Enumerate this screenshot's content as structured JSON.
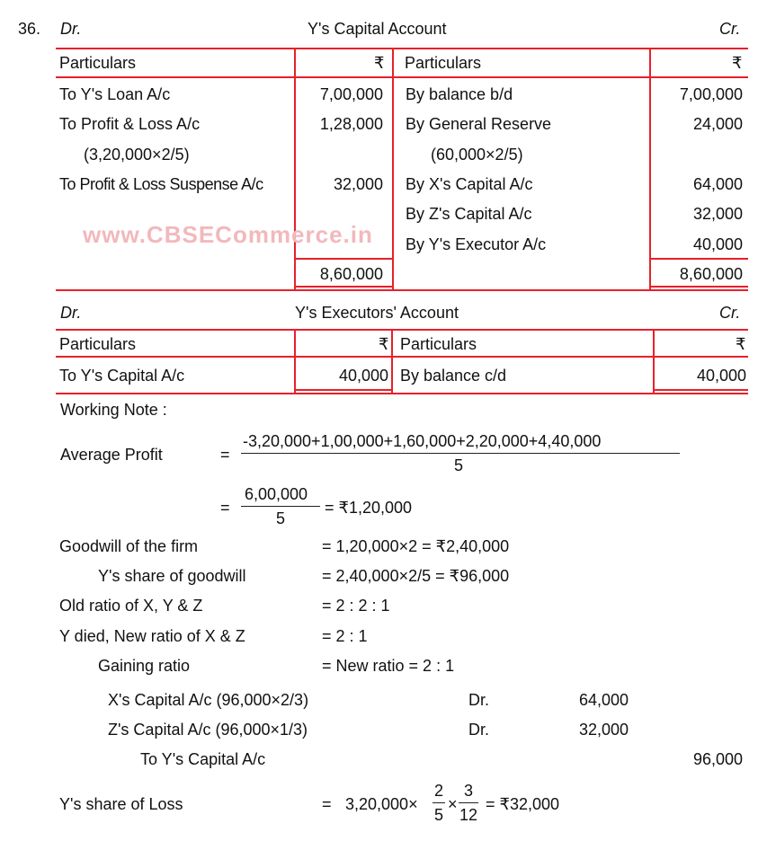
{
  "question_number": "36.",
  "capital_account": {
    "dr": "Dr.",
    "title": "Y's Capital Account",
    "cr": "Cr.",
    "headers": [
      "Particulars",
      "₹",
      "Particulars",
      "₹"
    ],
    "debit": [
      {
        "p": "To Y's Loan A/c",
        "a": "7,00,000"
      },
      {
        "p": "To Profit & Loss A/c",
        "a": "1,28,000"
      },
      {
        "p": "(3,20,000×2/5)",
        "a": ""
      },
      {
        "p": "To Profit & Loss Suspense A/c",
        "a": "32,000"
      }
    ],
    "credit": [
      {
        "p": "By balance b/d",
        "a": "7,00,000"
      },
      {
        "p": "By General Reserve",
        "a": "24,000"
      },
      {
        "p": "(60,000×2/5)",
        "a": ""
      },
      {
        "p": "By X's Capital A/c",
        "a": "64,000"
      },
      {
        "p": "By Z's Capital A/c",
        "a": "32,000"
      },
      {
        "p": "By Y's Executor A/c",
        "a": "40,000"
      }
    ],
    "total_dr": "8,60,000",
    "total_cr": "8,60,000"
  },
  "watermark": "www.CBSECommerce.in",
  "executors_account": {
    "dr": "Dr.",
    "title": "Y's Executors' Account",
    "cr": "Cr.",
    "headers": [
      "Particulars",
      "₹",
      "Particulars",
      "₹"
    ],
    "debit": {
      "p": "To Y's Capital A/c",
      "a": "40,000"
    },
    "credit": {
      "p": "By balance c/d",
      "a": "40,000"
    }
  },
  "working_note": {
    "heading": "Working Note :",
    "avg_label": "Average Profit",
    "eq": "=",
    "avg_num": "-3,20,000+1,00,000+1,60,000+2,20,000+4,40,000",
    "avg_den": "5",
    "avg2_num": "6,00,000",
    "avg2_den": "5",
    "avg2_res": "= ₹1,20,000",
    "lines": [
      {
        "label": "Goodwill of the firm",
        "value": "=  1,20,000×2 = ₹2,40,000"
      },
      {
        "label": "Y's share of goodwill",
        "value": "=  2,40,000×2/5 = ₹96,000"
      },
      {
        "label": "Old ratio of X, Y & Z",
        "value": "=  2 : 2 : 1"
      },
      {
        "label": "Y died, New ratio of X & Z",
        "value": "=  2 : 1"
      },
      {
        "label": "Gaining ratio",
        "value": "=  New ratio = 2 : 1"
      }
    ],
    "journal": [
      {
        "p": "X's Capital A/c (96,000×2/3)",
        "dr": "Dr.",
        "d": "64,000",
        "c": ""
      },
      {
        "p": "Z's Capital A/c (96,000×1/3)",
        "dr": "Dr.",
        "d": "32,000",
        "c": ""
      },
      {
        "p": "To Y's Capital A/c",
        "dr": "",
        "d": "",
        "c": "96,000"
      }
    ],
    "loss_label": "Y's share of Loss",
    "loss_eq": "=",
    "loss_a": "3,20,000×",
    "f1n": "2",
    "f1d": "5",
    "times": "×",
    "f2n": "3",
    "f2d": "12",
    "loss_res": "= ₹32,000"
  }
}
